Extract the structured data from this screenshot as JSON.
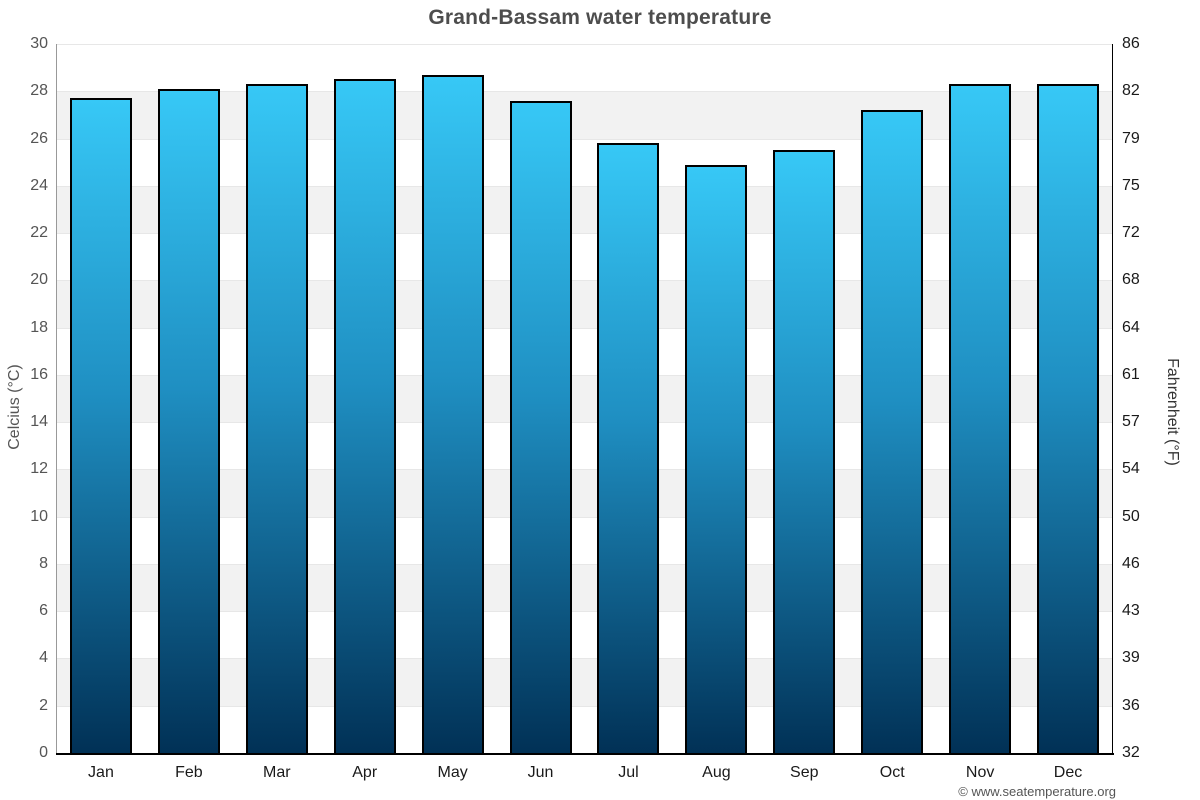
{
  "page": {
    "title": "Grand-Bassam water temperature",
    "copyright": "© www.seatemperature.org"
  },
  "chart_data": {
    "type": "bar",
    "title": "Grand-Bassam water temperature",
    "categories": [
      "Jan",
      "Feb",
      "Mar",
      "Apr",
      "May",
      "Jun",
      "Jul",
      "Aug",
      "Sep",
      "Oct",
      "Nov",
      "Dec"
    ],
    "values": [
      27.7,
      28.1,
      28.3,
      28.5,
      28.7,
      27.6,
      25.8,
      24.9,
      25.5,
      27.2,
      28.3,
      28.3
    ],
    "unit": "°C",
    "xlabel": "",
    "ylabel_left": "Celcius (°C)",
    "ylabel_right": "Fahrenheit (°F)",
    "ylim": [
      0,
      30
    ],
    "ytick_step": 2,
    "yticks_celsius": [
      30,
      28,
      26,
      24,
      22,
      20,
      18,
      16,
      14,
      12,
      10,
      8,
      6,
      4,
      2,
      0
    ],
    "yticks_fahrenheit": [
      86,
      82,
      79,
      75,
      72,
      68,
      64,
      61,
      57,
      54,
      50,
      46,
      43,
      39,
      36,
      32
    ],
    "legend": "none",
    "grid": "zebra-bands",
    "colors": {
      "bar_top": "#37c8f6",
      "bar_mid": "#1f8fc2",
      "bar_bottom": "#013156",
      "bar_border": "#000000",
      "band_gray": "#f2f2f2",
      "gridline": "#e7e7e7",
      "axis_left_line": "#999999",
      "axis_right_line": "#000000",
      "axis_bottom_line": "#000000",
      "title_color": "#4d4d4d",
      "tick_left_color": "#555555",
      "tick_right_color": "#1a1a1a",
      "month_color": "#1a1a1a",
      "axis_title_left_color": "#555555",
      "axis_title_right_color": "#333333",
      "copyright_color": "#555555"
    }
  }
}
